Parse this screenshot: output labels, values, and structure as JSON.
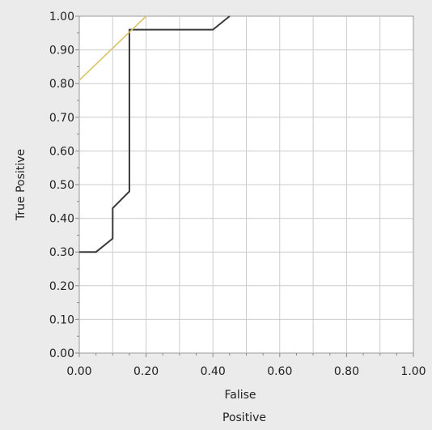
{
  "chart_data": {
    "type": "line",
    "xlabel_lines": [
      "Falise",
      "Positive"
    ],
    "ylabel": "True Positive",
    "xlim": [
      0,
      1
    ],
    "ylim": [
      0,
      1
    ],
    "x_ticks": [
      "0.00",
      "0.20",
      "0.40",
      "0.60",
      "0.80",
      "1.00"
    ],
    "y_ticks": [
      "0.00",
      "0.10",
      "0.20",
      "0.30",
      "0.40",
      "0.50",
      "0.60",
      "0.70",
      "0.80",
      "0.90",
      "1.00"
    ],
    "grid": true,
    "series": [
      {
        "color": "#3a3a3a",
        "x": [
          0.0,
          0.05,
          0.1,
          0.1,
          0.15,
          0.15,
          0.4,
          0.45
        ],
        "y": [
          0.3,
          0.3,
          0.34,
          0.43,
          0.48,
          0.96,
          0.96,
          1.0
        ]
      },
      {
        "color": "#d9c46a",
        "x": [
          0.0,
          0.2
        ],
        "y": [
          0.81,
          1.0
        ]
      }
    ]
  }
}
